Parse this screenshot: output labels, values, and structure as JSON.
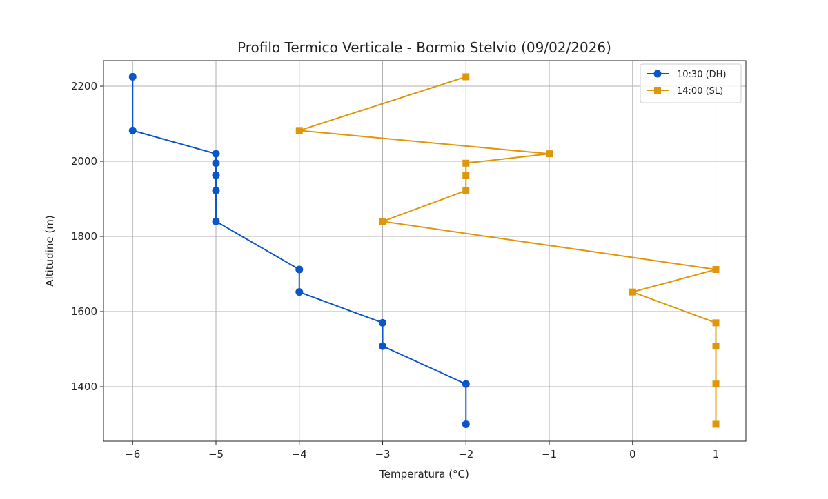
{
  "chart_data": {
    "type": "line",
    "title": "Profilo Termico Verticale - Bormio Stelvio (09/02/2026)",
    "xlabel": "Temperatura (°C)",
    "ylabel": "Altitudine (m)",
    "xlim": [
      -6.35,
      1.36
    ],
    "ylim": [
      1255,
      2268
    ],
    "xticks": [
      -6,
      -5,
      -4,
      -3,
      -2,
      -1,
      0,
      1
    ],
    "yticks": [
      1400,
      1600,
      1800,
      2000,
      2200
    ],
    "grid": true,
    "legend_position": "top-right",
    "altitudes": [
      2225,
      2082,
      2020,
      1995,
      1963,
      1922,
      1840,
      1712,
      1652,
      1570,
      1508,
      1407,
      1300
    ],
    "series": [
      {
        "name": "10:30 (DH)",
        "color": "#0a55c8",
        "marker": "circle",
        "values": [
          -6,
          -6,
          -5,
          -5,
          -5,
          -5,
          -5,
          -4,
          -4,
          -3,
          -3,
          -2,
          -2
        ]
      },
      {
        "name": "14:00 (SL)",
        "color": "#e0960a",
        "marker": "square",
        "values": [
          -2,
          -4,
          -1,
          -2,
          -2,
          -2,
          -3,
          1,
          0,
          1,
          1,
          1,
          1
        ]
      }
    ]
  }
}
